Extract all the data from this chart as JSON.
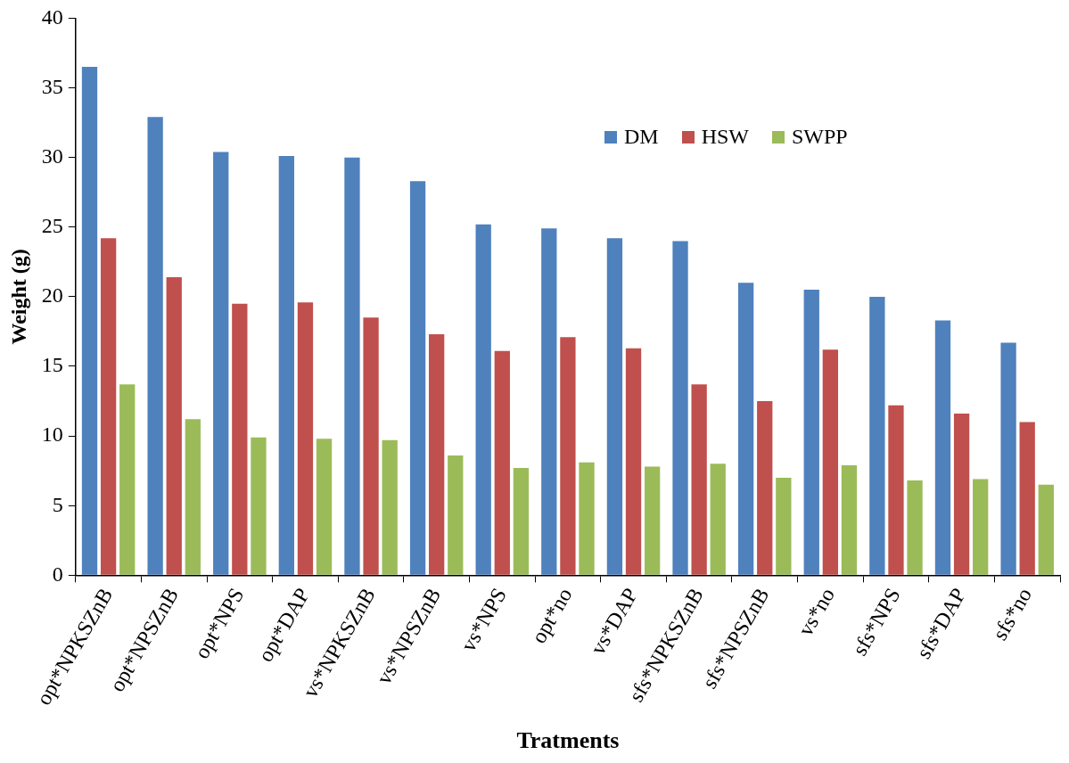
{
  "chart_data": {
    "type": "bar",
    "xlabel": "Tratments",
    "ylabel": "Weight (g)",
    "categories": [
      "opt*NPKSZnB",
      "opt*NPSZnB",
      "opt*NPS",
      "opt*DAP",
      "vs*NPKSZnB",
      "vs*NPSZnB",
      "vs*NPS",
      "opt*no",
      "vs*DAP",
      "sfs*NPKSZnB",
      "sfs*NPSZnB",
      "vs*no",
      "sfs*NPS",
      "sfs*DAP",
      "sfs*no"
    ],
    "series": [
      {
        "name": "DM",
        "color": "#4f81bd",
        "values": [
          36.5,
          32.9,
          30.4,
          30.1,
          30.0,
          28.3,
          25.2,
          24.9,
          24.2,
          24.0,
          21.0,
          20.5,
          20.0,
          18.3,
          16.7
        ]
      },
      {
        "name": "HSW",
        "color": "#c0504d",
        "values": [
          24.2,
          21.4,
          19.5,
          19.6,
          18.5,
          17.3,
          16.1,
          17.1,
          16.3,
          13.7,
          12.5,
          16.2,
          12.2,
          11.6,
          11.0
        ]
      },
      {
        "name": "SWPP",
        "color": "#9bbb59",
        "values": [
          13.7,
          11.2,
          9.9,
          9.8,
          9.7,
          8.6,
          7.7,
          8.1,
          7.8,
          8.0,
          7.0,
          7.9,
          6.8,
          6.9,
          6.5
        ]
      }
    ],
    "ylim": [
      0,
      40
    ],
    "yticks": [
      0,
      5,
      10,
      15,
      20,
      25,
      30,
      35,
      40
    ],
    "grid": false,
    "legend": "top right"
  }
}
